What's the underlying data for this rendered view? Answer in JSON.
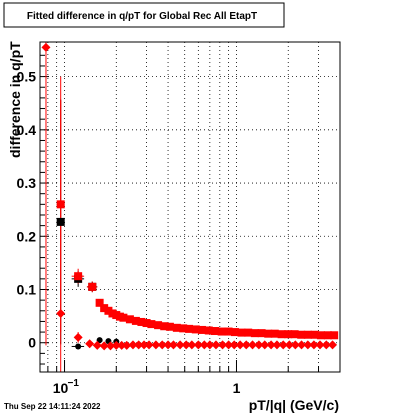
{
  "chart_data": {
    "type": "scatter",
    "title": "Fitted difference in q/pT for Global Rec All EtapT",
    "xlabel": "pT/|q| (GeV/c)",
    "ylabel": "difference in q/pT",
    "x_scale": "log",
    "xlim": [
      0.072,
      4.0
    ],
    "ylim": [
      -0.055,
      0.565
    ],
    "grid": true,
    "x_ticks": [
      {
        "value": 0.1,
        "base": "10",
        "exp": "−1"
      },
      {
        "value": 1,
        "base": "1",
        "exp": ""
      }
    ],
    "y_ticks": [
      {
        "value": 0,
        "label": "0"
      },
      {
        "value": 0.1,
        "label": "0.1"
      },
      {
        "value": 0.2,
        "label": "0.2"
      },
      {
        "value": 0.3,
        "label": "0.3"
      },
      {
        "value": 0.4,
        "label": "0.4"
      },
      {
        "value": 0.5,
        "label": "0.5"
      }
    ],
    "series": [
      {
        "marker": "square",
        "color": "#000000",
        "points": [
          {
            "x": 0.095,
            "y": 0.227,
            "yerr": 0.23,
            "xerr": [
              0.09,
              0.1
            ]
          },
          {
            "x": 0.12,
            "y": 0.12,
            "yerr": 0.015,
            "xerr": [
              0.11,
              0.13
            ]
          },
          {
            "x": 0.145,
            "y": 0.105,
            "yerr": 0.01,
            "xerr": [
              0.135,
              0.155
            ]
          }
        ]
      },
      {
        "marker": "circle",
        "color": "#000000",
        "points": [
          {
            "x": 0.12,
            "y": -0.007,
            "yerr": 0.005,
            "xerr": [
              0.11,
              0.13
            ]
          },
          {
            "x": 0.16,
            "y": 0.005,
            "yerr": 0.003,
            "xerr": [
              0.155,
              0.165
            ]
          },
          {
            "x": 0.18,
            "y": 0.003,
            "yerr": 0.002,
            "xerr": [
              0.175,
              0.185
            ]
          },
          {
            "x": 0.2,
            "y": 0.002,
            "yerr": 0.002,
            "xerr": [
              0.195,
              0.205
            ]
          }
        ]
      },
      {
        "marker": "square",
        "color": "#ff0000",
        "points": [
          {
            "x": 0.095,
            "y": 0.26,
            "yerr": 0.24,
            "xerr": [
              0.09,
              0.1
            ]
          },
          {
            "x": 0.12,
            "y": 0.125,
            "yerr": 0.014,
            "xerr": [
              0.11,
              0.13
            ]
          },
          {
            "x": 0.145,
            "y": 0.105,
            "yerr": 0.01,
            "xerr": [
              0.135,
              0.155
            ]
          },
          {
            "x": 0.16,
            "y": 0.075
          },
          {
            "x": 0.17,
            "y": 0.065
          },
          {
            "x": 0.18,
            "y": 0.06
          },
          {
            "x": 0.19,
            "y": 0.055
          },
          {
            "x": 0.2,
            "y": 0.052
          },
          {
            "x": 0.21,
            "y": 0.049
          },
          {
            "x": 0.22,
            "y": 0.047
          },
          {
            "x": 0.24,
            "y": 0.044
          },
          {
            "x": 0.26,
            "y": 0.041
          },
          {
            "x": 0.28,
            "y": 0.039
          },
          {
            "x": 0.3,
            "y": 0.037
          },
          {
            "x": 0.32,
            "y": 0.035
          },
          {
            "x": 0.35,
            "y": 0.033
          },
          {
            "x": 0.38,
            "y": 0.031
          },
          {
            "x": 0.41,
            "y": 0.03
          },
          {
            "x": 0.45,
            "y": 0.028
          },
          {
            "x": 0.49,
            "y": 0.027
          },
          {
            "x": 0.53,
            "y": 0.026
          },
          {
            "x": 0.58,
            "y": 0.025
          },
          {
            "x": 0.63,
            "y": 0.024
          },
          {
            "x": 0.69,
            "y": 0.023
          },
          {
            "x": 0.75,
            "y": 0.022
          },
          {
            "x": 0.82,
            "y": 0.021
          },
          {
            "x": 0.9,
            "y": 0.021
          },
          {
            "x": 0.98,
            "y": 0.02
          },
          {
            "x": 1.07,
            "y": 0.019
          },
          {
            "x": 1.17,
            "y": 0.019
          },
          {
            "x": 1.28,
            "y": 0.018
          },
          {
            "x": 1.4,
            "y": 0.018
          },
          {
            "x": 1.53,
            "y": 0.017
          },
          {
            "x": 1.67,
            "y": 0.017
          },
          {
            "x": 1.83,
            "y": 0.016
          },
          {
            "x": 2.0,
            "y": 0.016
          },
          {
            "x": 2.18,
            "y": 0.016
          },
          {
            "x": 2.38,
            "y": 0.015
          },
          {
            "x": 2.6,
            "y": 0.015
          },
          {
            "x": 2.85,
            "y": 0.015
          },
          {
            "x": 3.1,
            "y": 0.014
          },
          {
            "x": 3.4,
            "y": 0.014
          },
          {
            "x": 3.7,
            "y": 0.014
          }
        ]
      },
      {
        "marker": "diamond",
        "color": "#ff0000",
        "points": [
          {
            "x": 0.078,
            "y": 0.555,
            "yerr": 0.56
          },
          {
            "x": 0.095,
            "y": 0.055,
            "yerr": 0.4
          },
          {
            "x": 0.12,
            "y": 0.01,
            "yerr": 0.01
          },
          {
            "x": 0.14,
            "y": -0.002
          },
          {
            "x": 0.155,
            "y": -0.005
          },
          {
            "x": 0.17,
            "y": -0.006
          },
          {
            "x": 0.185,
            "y": -0.006
          },
          {
            "x": 0.2,
            "y": -0.005
          },
          {
            "x": 0.215,
            "y": -0.005
          },
          {
            "x": 0.23,
            "y": -0.005
          },
          {
            "x": 0.25,
            "y": -0.004
          },
          {
            "x": 0.27,
            "y": -0.004
          },
          {
            "x": 0.29,
            "y": -0.004
          },
          {
            "x": 0.31,
            "y": -0.004
          },
          {
            "x": 0.34,
            "y": -0.004
          },
          {
            "x": 0.37,
            "y": -0.004
          },
          {
            "x": 0.4,
            "y": -0.004
          },
          {
            "x": 0.43,
            "y": -0.004
          },
          {
            "x": 0.47,
            "y": -0.004
          },
          {
            "x": 0.51,
            "y": -0.004
          },
          {
            "x": 0.55,
            "y": -0.004
          },
          {
            "x": 0.6,
            "y": -0.004
          },
          {
            "x": 0.65,
            "y": -0.004
          },
          {
            "x": 0.7,
            "y": -0.004
          },
          {
            "x": 0.76,
            "y": -0.004
          },
          {
            "x": 0.83,
            "y": -0.004
          },
          {
            "x": 0.9,
            "y": -0.004
          },
          {
            "x": 0.97,
            "y": -0.004
          },
          {
            "x": 1.05,
            "y": -0.004
          },
          {
            "x": 1.14,
            "y": -0.004
          },
          {
            "x": 1.24,
            "y": -0.004
          },
          {
            "x": 1.35,
            "y": -0.004
          },
          {
            "x": 1.46,
            "y": -0.004
          },
          {
            "x": 1.59,
            "y": -0.004
          },
          {
            "x": 1.72,
            "y": -0.004
          },
          {
            "x": 1.87,
            "y": -0.004
          },
          {
            "x": 2.03,
            "y": -0.004
          },
          {
            "x": 2.2,
            "y": -0.004
          },
          {
            "x": 2.39,
            "y": -0.004
          },
          {
            "x": 2.6,
            "y": -0.004
          },
          {
            "x": 2.82,
            "y": -0.004
          },
          {
            "x": 3.06,
            "y": -0.004
          },
          {
            "x": 3.33,
            "y": -0.004
          },
          {
            "x": 3.62,
            "y": -0.004
          }
        ]
      }
    ]
  },
  "footer": {
    "timestamp": "Thu Sep 22 14:11:24 2022"
  }
}
